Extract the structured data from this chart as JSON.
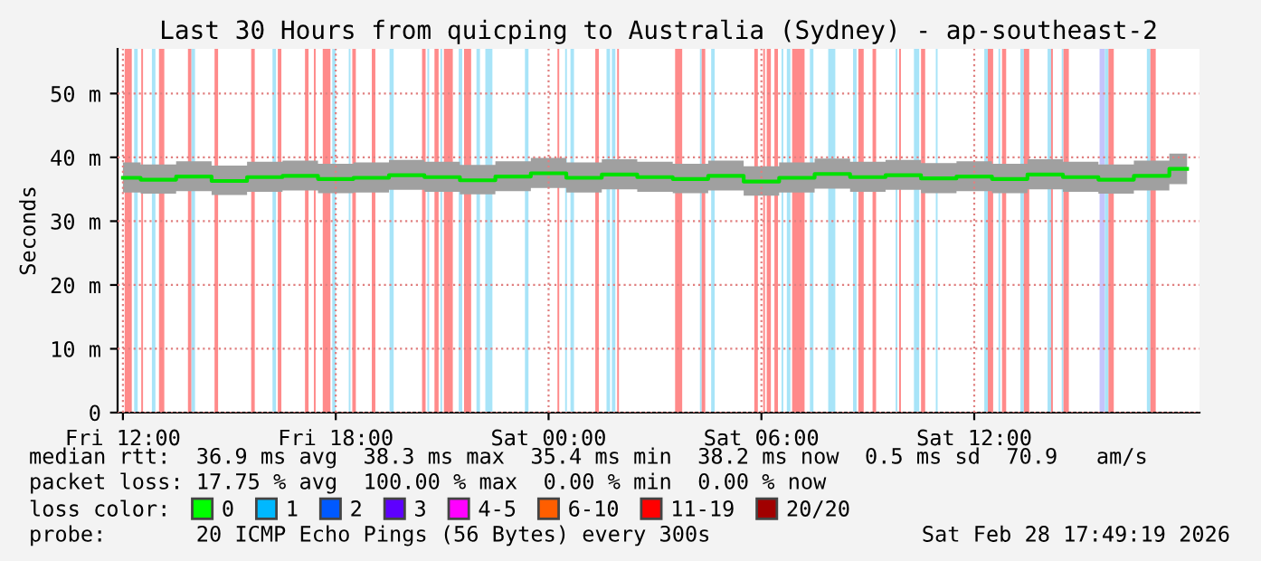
{
  "chart_data": {
    "type": "line",
    "title": "Last 30 Hours from quicping to Australia (Sydney) - ap-southeast-2",
    "ylabel": "Seconds",
    "x": [
      "2026-02-27T12:00",
      "2026-02-27T13:00",
      "2026-02-27T14:00",
      "2026-02-27T15:00",
      "2026-02-27T16:00",
      "2026-02-27T17:00",
      "2026-02-27T18:00",
      "2026-02-27T19:00",
      "2026-02-27T20:00",
      "2026-02-27T21:00",
      "2026-02-27T22:00",
      "2026-02-27T23:00",
      "2026-02-28T00:00",
      "2026-02-28T01:00",
      "2026-02-28T02:00",
      "2026-02-28T03:00",
      "2026-02-28T04:00",
      "2026-02-28T05:00",
      "2026-02-28T06:00",
      "2026-02-28T07:00",
      "2026-02-28T08:00",
      "2026-02-28T09:00",
      "2026-02-28T10:00",
      "2026-02-28T11:00",
      "2026-02-28T12:00",
      "2026-02-28T13:00",
      "2026-02-28T14:00",
      "2026-02-28T15:00",
      "2026-02-28T16:00",
      "2026-02-28T17:00",
      "2026-02-28T18:00"
    ],
    "series": [
      {
        "color": "#00e000",
        "values": [
          36.8,
          36.5,
          37.0,
          36.3,
          36.9,
          37.1,
          36.6,
          36.8,
          37.2,
          36.9,
          36.4,
          37.0,
          37.5,
          36.8,
          37.3,
          36.9,
          36.6,
          37.1,
          36.2,
          36.8,
          37.4,
          36.9,
          37.2,
          36.7,
          37.0,
          36.6,
          37.3,
          36.9,
          36.5,
          37.1,
          38.2
        ],
        "lower": [
          34.5,
          34.3,
          34.7,
          34.1,
          34.6,
          34.8,
          34.4,
          34.5,
          34.9,
          34.6,
          34.2,
          34.7,
          35.2,
          34.5,
          35.0,
          34.6,
          34.4,
          34.8,
          34.0,
          34.5,
          35.1,
          34.6,
          34.9,
          34.4,
          34.7,
          34.4,
          35.0,
          34.6,
          34.3,
          34.8,
          35.8
        ],
        "upper": [
          39.2,
          38.9,
          39.4,
          38.7,
          39.3,
          39.5,
          39.0,
          39.2,
          39.6,
          39.3,
          38.8,
          39.4,
          39.9,
          39.2,
          39.7,
          39.3,
          39.0,
          39.5,
          38.6,
          39.2,
          39.8,
          39.3,
          39.6,
          39.1,
          39.4,
          39.0,
          39.7,
          39.3,
          38.9,
          39.5,
          40.6
        ]
      },
      {
        "name": "0",
        "type": "scatter",
        "color": "#00ff00",
        "values": [
          null,
          null,
          null,
          null,
          null,
          null,
          null,
          null,
          null,
          null,
          null,
          null,
          null,
          null,
          null,
          null,
          null,
          null,
          null,
          null,
          null,
          null,
          null,
          null,
          null,
          null,
          null,
          null,
          null,
          null,
          null
        ]
      },
      {
        "name": "1",
        "type": "scatter",
        "color": "#00b8ff",
        "values": [
          null,
          null,
          null,
          null,
          null,
          null,
          null,
          null,
          null,
          null,
          null,
          null,
          null,
          null,
          null,
          null,
          null,
          null,
          null,
          null,
          null,
          null,
          null,
          null,
          null,
          null,
          null,
          null,
          null,
          null,
          null
        ]
      },
      {
        "name": "2",
        "type": "scatter",
        "color": "#0059ff",
        "values": [
          null,
          null,
          null,
          null,
          null,
          null,
          null,
          null,
          null,
          null,
          null,
          null,
          null,
          null,
          null,
          null,
          null,
          null,
          null,
          null,
          null,
          null,
          null,
          null,
          null,
          null,
          null,
          null,
          null,
          null,
          null
        ]
      },
      {
        "name": "3",
        "type": "scatter",
        "color": "#5e00ff",
        "values": [
          null,
          null,
          null,
          null,
          null,
          null,
          null,
          null,
          null,
          null,
          null,
          null,
          null,
          null,
          null,
          null,
          null,
          null,
          null,
          null,
          null,
          null,
          null,
          null,
          null,
          null,
          null,
          null,
          null,
          null,
          null
        ]
      },
      {
        "name": "4-5",
        "type": "scatter",
        "color": "#ff00ff",
        "values": [
          null,
          null,
          null,
          null,
          null,
          null,
          null,
          null,
          null,
          null,
          null,
          null,
          null,
          null,
          null,
          null,
          null,
          null,
          null,
          null,
          null,
          null,
          null,
          null,
          null,
          null,
          null,
          null,
          null,
          null,
          null
        ]
      },
      {
        "name": "6-10",
        "type": "scatter",
        "color": "#ff5e00",
        "values": [
          null,
          null,
          null,
          null,
          null,
          null,
          null,
          null,
          null,
          null,
          null,
          null,
          null,
          null,
          null,
          null,
          null,
          null,
          null,
          null,
          null,
          null,
          null,
          null,
          null,
          null,
          null,
          null,
          null,
          null,
          null
        ]
      },
      {
        "name": "11-19",
        "type": "scatter",
        "color": "#ff0000",
        "values": [
          null,
          null,
          null,
          null,
          null,
          null,
          null,
          null,
          null,
          null,
          null,
          null,
          null,
          null,
          null,
          null,
          null,
          null,
          null,
          null,
          null,
          null,
          null,
          null,
          null,
          null,
          null,
          null,
          null,
          null,
          null
        ]
      },
      {
        "name": "20/20",
        "type": "scatter",
        "color": "#a10000",
        "values": [
          null,
          null,
          null,
          null,
          null,
          null,
          null,
          null,
          null,
          null,
          null,
          null,
          null,
          null,
          null,
          null,
          null,
          null,
          null,
          null,
          null,
          null,
          null,
          null,
          null,
          null,
          null,
          null,
          null,
          null,
          null
        ]
      }
    ],
    "legend": "bottom",
    "legend_title": "loss color:",
    "xlim": [
      "2026-02-27T11:51",
      "2026-02-28T18:21"
    ],
    "xticks": [
      {
        "value": "2026-02-27T12:00",
        "label": "Fri 12:00"
      },
      {
        "value": "2026-02-27T18:00",
        "label": "Fri 18:00"
      },
      {
        "value": "2026-02-28T00:00",
        "label": "Sat 00:00"
      },
      {
        "value": "2026-02-28T06:00",
        "label": "Sat 06:00"
      },
      {
        "value": "2026-02-28T12:00",
        "label": "Sat 12:00"
      }
    ],
    "ylim": [
      0,
      57
    ],
    "yticks": [
      0,
      {
        "value": 10,
        "label": "10 m"
      },
      {
        "value": 20,
        "label": "20 m"
      },
      {
        "value": 30,
        "label": "30 m"
      },
      {
        "value": 40,
        "label": "40 m"
      },
      {
        "value": 50,
        "label": "50 m"
      }
    ],
    "grid": true,
    "bands": [
      {
        "axis": "x",
        "from": "2026-02-27T12:03",
        "to": "2026-02-27T12:15",
        "color": "#ff8a8a"
      },
      {
        "axis": "x",
        "from": "2026-02-27T12:19",
        "to": "2026-02-27T12:25",
        "color": "#a8e4f8"
      },
      {
        "axis": "x",
        "from": "2026-02-27T12:31",
        "to": "2026-02-27T12:34",
        "color": "#ff8a8a"
      },
      {
        "axis": "x",
        "from": "2026-02-27T12:49",
        "to": "2026-02-27T12:55",
        "color": "#a8e4f8"
      },
      {
        "axis": "x",
        "from": "2026-02-27T13:01",
        "to": "2026-02-27T13:10",
        "color": "#ff8a8a"
      },
      {
        "axis": "x",
        "from": "2026-02-27T13:50",
        "to": "2026-02-27T13:56",
        "color": "#ff8a8a"
      },
      {
        "axis": "x",
        "from": "2026-02-27T13:56",
        "to": "2026-02-27T14:02",
        "color": "#a8e4f8"
      },
      {
        "axis": "x",
        "from": "2026-02-27T14:35",
        "to": "2026-02-27T14:41",
        "color": "#ff8a8a"
      },
      {
        "axis": "x",
        "from": "2026-02-27T15:37",
        "to": "2026-02-27T15:43",
        "color": "#ff8a8a"
      },
      {
        "axis": "x",
        "from": "2026-02-27T16:13",
        "to": "2026-02-27T16:19",
        "color": "#a8e4f8"
      },
      {
        "axis": "x",
        "from": "2026-02-27T16:22",
        "to": "2026-02-27T16:28",
        "color": "#ff8a8a"
      },
      {
        "axis": "x",
        "from": "2026-02-27T17:08",
        "to": "2026-02-27T17:14",
        "color": "#ff8a8a"
      },
      {
        "axis": "x",
        "from": "2026-02-27T17:23",
        "to": "2026-02-27T17:26",
        "color": "#ff8a8a"
      },
      {
        "axis": "x",
        "from": "2026-02-27T17:38",
        "to": "2026-02-27T17:51",
        "color": "#ff8a8a"
      },
      {
        "axis": "x",
        "from": "2026-02-27T17:54",
        "to": "2026-02-27T18:00",
        "color": "#a8e4f8"
      },
      {
        "axis": "x",
        "from": "2026-02-27T18:22",
        "to": "2026-02-27T18:25",
        "color": "#a8e4f8"
      },
      {
        "axis": "x",
        "from": "2026-02-27T18:28",
        "to": "2026-02-27T18:34",
        "color": "#ff8a8a"
      },
      {
        "axis": "x",
        "from": "2026-02-27T19:01",
        "to": "2026-02-27T19:07",
        "color": "#ff8a8a"
      },
      {
        "axis": "x",
        "from": "2026-02-27T19:31",
        "to": "2026-02-27T19:38",
        "color": "#a8e4f8"
      },
      {
        "axis": "x",
        "from": "2026-02-27T20:26",
        "to": "2026-02-27T20:32",
        "color": "#ff8a8a"
      },
      {
        "axis": "x",
        "from": "2026-02-27T20:35",
        "to": "2026-02-27T20:38",
        "color": "#a8e4f8"
      },
      {
        "axis": "x",
        "from": "2026-02-27T20:47",
        "to": "2026-02-27T20:54",
        "color": "#ff8a8a"
      },
      {
        "axis": "x",
        "from": "2026-02-27T20:57",
        "to": "2026-02-27T21:00",
        "color": "#a8e4f8"
      },
      {
        "axis": "x",
        "from": "2026-02-27T21:03",
        "to": "2026-02-27T21:18",
        "color": "#ff8a8a"
      },
      {
        "axis": "x",
        "from": "2026-02-27T21:28",
        "to": "2026-02-27T21:34",
        "color": "#a8e4f8"
      },
      {
        "axis": "x",
        "from": "2026-02-27T21:37",
        "to": "2026-02-27T21:49",
        "color": "#ff8a8a"
      },
      {
        "axis": "x",
        "from": "2026-02-27T21:58",
        "to": "2026-02-27T22:04",
        "color": "#a8e4f8"
      },
      {
        "axis": "x",
        "from": "2026-02-27T22:13",
        "to": "2026-02-27T22:25",
        "color": "#a8e4f8"
      },
      {
        "axis": "x",
        "from": "2026-02-27T23:20",
        "to": "2026-02-27T23:26",
        "color": "#a8e4f8"
      },
      {
        "axis": "x",
        "from": "2026-02-28T00:15",
        "to": "2026-02-28T00:18",
        "color": "#ff8a8a"
      },
      {
        "axis": "x",
        "from": "2026-02-28T00:28",
        "to": "2026-02-28T00:31",
        "color": "#a8e4f8"
      },
      {
        "axis": "x",
        "from": "2026-02-28T00:37",
        "to": "2026-02-28T00:43",
        "color": "#a8e4f8"
      },
      {
        "axis": "x",
        "from": "2026-02-28T01:19",
        "to": "2026-02-28T01:25",
        "color": "#ff8a8a"
      },
      {
        "axis": "x",
        "from": "2026-02-28T01:38",
        "to": "2026-02-28T01:44",
        "color": "#a8e4f8"
      },
      {
        "axis": "x",
        "from": "2026-02-28T01:47",
        "to": "2026-02-28T01:53",
        "color": "#a8e4f8"
      },
      {
        "axis": "x",
        "from": "2026-02-28T01:56",
        "to": "2026-02-28T01:59",
        "color": "#ff8a8a"
      },
      {
        "axis": "x",
        "from": "2026-02-28T03:34",
        "to": "2026-02-28T03:46",
        "color": "#ff8a8a"
      },
      {
        "axis": "x",
        "from": "2026-02-28T04:16",
        "to": "2026-02-28T04:19",
        "color": "#a8e4f8"
      },
      {
        "axis": "x",
        "from": "2026-02-28T04:19",
        "to": "2026-02-28T04:25",
        "color": "#ff8a8a"
      },
      {
        "axis": "x",
        "from": "2026-02-28T04:35",
        "to": "2026-02-28T04:41",
        "color": "#a8e4f8"
      },
      {
        "axis": "x",
        "from": "2026-02-28T05:48",
        "to": "2026-02-28T05:54",
        "color": "#ff8a8a"
      },
      {
        "axis": "x",
        "from": "2026-02-28T06:03",
        "to": "2026-02-28T06:06",
        "color": "#ff8a8a"
      },
      {
        "axis": "x",
        "from": "2026-02-28T06:09",
        "to": "2026-02-28T06:16",
        "color": "#ff8a8a"
      },
      {
        "axis": "x",
        "from": "2026-02-28T06:22",
        "to": "2026-02-28T06:28",
        "color": "#ff8a8a"
      },
      {
        "axis": "x",
        "from": "2026-02-28T06:34",
        "to": "2026-02-28T06:37",
        "color": "#a8e4f8"
      },
      {
        "axis": "x",
        "from": "2026-02-28T06:43",
        "to": "2026-02-28T06:49",
        "color": "#a8e4f8"
      },
      {
        "axis": "x",
        "from": "2026-02-28T06:52",
        "to": "2026-02-28T07:13",
        "color": "#ff8a8a"
      },
      {
        "axis": "x",
        "from": "2026-02-28T07:22",
        "to": "2026-02-28T07:28",
        "color": "#a8e4f8"
      },
      {
        "axis": "x",
        "from": "2026-02-28T07:53",
        "to": "2026-02-28T08:05",
        "color": "#a8e4f8"
      },
      {
        "axis": "x",
        "from": "2026-02-28T08:35",
        "to": "2026-02-28T08:41",
        "color": "#a8e4f8"
      },
      {
        "axis": "x",
        "from": "2026-02-28T08:44",
        "to": "2026-02-28T08:53",
        "color": "#ff8a8a"
      },
      {
        "axis": "x",
        "from": "2026-02-28T09:08",
        "to": "2026-02-28T09:14",
        "color": "#ff8a8a"
      },
      {
        "axis": "x",
        "from": "2026-02-28T09:47",
        "to": "2026-02-28T09:50",
        "color": "#a8e4f8"
      },
      {
        "axis": "x",
        "from": "2026-02-28T09:53",
        "to": "2026-02-28T09:56",
        "color": "#ff8a8a"
      },
      {
        "axis": "x",
        "from": "2026-02-28T10:18",
        "to": "2026-02-28T10:27",
        "color": "#a8e4f8"
      },
      {
        "axis": "x",
        "from": "2026-02-28T10:30",
        "to": "2026-02-28T10:37",
        "color": "#ff8a8a"
      },
      {
        "axis": "x",
        "from": "2026-02-28T10:55",
        "to": "2026-02-28T10:58",
        "color": "#a8e4f8"
      },
      {
        "axis": "x",
        "from": "2026-02-28T12:17",
        "to": "2026-02-28T12:23",
        "color": "#a8e4f8"
      },
      {
        "axis": "x",
        "from": "2026-02-28T12:23",
        "to": "2026-02-28T12:32",
        "color": "#ff8a8a"
      },
      {
        "axis": "x",
        "from": "2026-02-28T12:41",
        "to": "2026-02-28T12:44",
        "color": "#a8e4f8"
      },
      {
        "axis": "x",
        "from": "2026-02-28T12:47",
        "to": "2026-02-28T12:54",
        "color": "#ff8a8a"
      },
      {
        "axis": "x",
        "from": "2026-02-28T13:18",
        "to": "2026-02-28T13:24",
        "color": "#a8e4f8"
      },
      {
        "axis": "x",
        "from": "2026-02-28T13:24",
        "to": "2026-02-28T13:33",
        "color": "#ff8a8a"
      },
      {
        "axis": "x",
        "from": "2026-02-28T14:04",
        "to": "2026-02-28T14:10",
        "color": "#a8e4f8"
      },
      {
        "axis": "x",
        "from": "2026-02-28T14:10",
        "to": "2026-02-28T14:13",
        "color": "#ff8a8a"
      },
      {
        "axis": "x",
        "from": "2026-02-28T14:28",
        "to": "2026-02-28T14:31",
        "color": "#a8e4f8"
      },
      {
        "axis": "x",
        "from": "2026-02-28T14:31",
        "to": "2026-02-28T14:40",
        "color": "#ff8a8a"
      },
      {
        "axis": "x",
        "from": "2026-02-28T15:32",
        "to": "2026-02-28T15:41",
        "color": "#c4c4fc"
      },
      {
        "axis": "x",
        "from": "2026-02-28T15:41",
        "to": "2026-02-28T15:47",
        "color": "#a8e4f8"
      },
      {
        "axis": "x",
        "from": "2026-02-28T15:47",
        "to": "2026-02-28T15:56",
        "color": "#ff8a8a"
      },
      {
        "axis": "x",
        "from": "2026-02-28T16:52",
        "to": "2026-02-28T16:58",
        "color": "#a8e4f8"
      },
      {
        "axis": "x",
        "from": "2026-02-28T16:58",
        "to": "2026-02-28T17:07",
        "color": "#ff8a8a"
      }
    ],
    "annotations": [
      "median rtt:  36.9 ms avg  38.3 ms max  35.4 ms min  38.2 ms now  0.5 ms sd  70.9   am/s",
      "packet loss: 17.75 % avg  100.00 % max  0.00 % min  0.00 % now",
      "probe:       20 ICMP Echo Pings (56 Bytes) every 300s",
      "Sat Feb 28 17:49:19 2026"
    ]
  }
}
